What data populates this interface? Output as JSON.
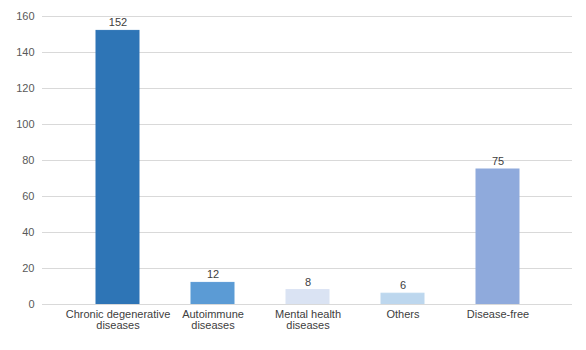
{
  "chart_data": {
    "type": "bar",
    "categories": [
      "Chronic degenerative diseases",
      "Autoimmune diseases",
      "Mental health diseases",
      "Others",
      "Disease-free"
    ],
    "values": [
      152,
      12,
      8,
      6,
      75
    ],
    "colors": [
      "#2e75b6",
      "#5b9bd5",
      "#dae3f3",
      "#bdd7ee",
      "#8faadc"
    ],
    "ylim": [
      0,
      160
    ],
    "yticks": [
      0,
      20,
      40,
      60,
      80,
      100,
      120,
      140,
      160
    ],
    "grid": true,
    "data_labels": true
  }
}
